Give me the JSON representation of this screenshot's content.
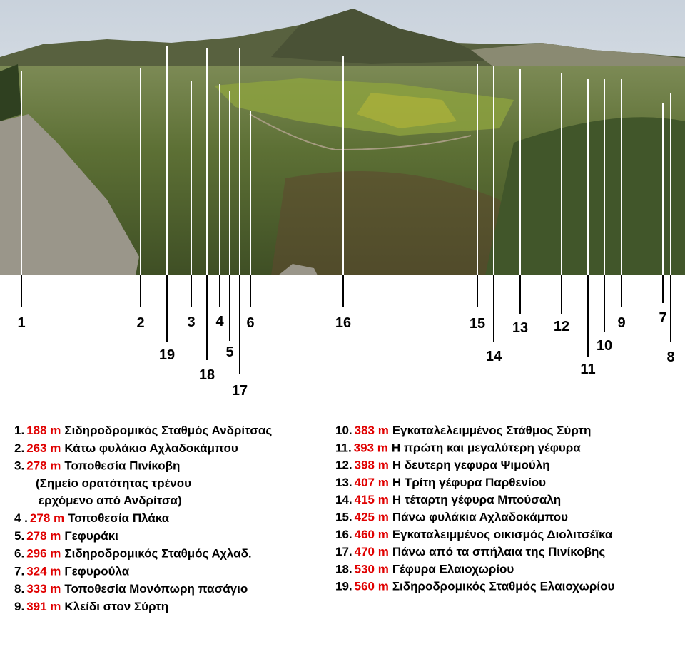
{
  "markers": [
    {
      "label": "1"
    },
    {
      "label": "2"
    },
    {
      "label": "19"
    },
    {
      "label": "3"
    },
    {
      "label": "18"
    },
    {
      "label": "4"
    },
    {
      "label": "5"
    },
    {
      "label": "17"
    },
    {
      "label": "6"
    },
    {
      "label": "16"
    },
    {
      "label": "15"
    },
    {
      "label": "14"
    },
    {
      "label": "13"
    },
    {
      "label": "12"
    },
    {
      "label": "11"
    },
    {
      "label": "10"
    },
    {
      "label": "9"
    },
    {
      "label": "7"
    },
    {
      "label": "8"
    }
  ],
  "legend": [
    {
      "number": "1.",
      "elevation": "188 m",
      "name": "Σιδηροδρομικός Σταθμός Ανδρίτσας"
    },
    {
      "number": "2.",
      "elevation": "263 m",
      "name": "Κάτω  φυλάκιο  Αχλαδοκάμπου"
    },
    {
      "number": "3.",
      "elevation": "278 m",
      "name": "Τοποθεσία Πινίκοβη",
      "notes": [
        "(Σημείο ορατότητας τρένου",
        "ερχόμενο από Ανδρίτσα)"
      ]
    },
    {
      "number": "4 .",
      "elevation": "278 m",
      "name": "Τοποθεσία Πλάκα"
    },
    {
      "number": "5.",
      "elevation": "278 m",
      "name": "Γεφυράκι"
    },
    {
      "number": "6.",
      "elevation": "296 m",
      "name": "Σιδηροδρομικός Σταθμός  Αχλαδ."
    },
    {
      "number": "7.",
      "elevation": "324 m",
      "name": "Γεφυρούλα"
    },
    {
      "number": "8.",
      "elevation": "333 m",
      "name": "Τοποθεσία Μονόπωρη πασάγιο"
    },
    {
      "number": "9.",
      "elevation": "391 m",
      "name": "Κλείδι στον Σύρτη"
    },
    {
      "number": "10.",
      "elevation": "383 m",
      "name": "Εγκαταλελειμμένος Στάθμος Σύρτη"
    },
    {
      "number": "11.",
      "elevation": "393 m",
      "name": "Η πρώτη και μεγαλύτερη γέφυρα"
    },
    {
      "number": "12.",
      "elevation": "398 m",
      "name": "Η δευτερη γεφυρα Ψιμούλη"
    },
    {
      "number": "13.",
      "elevation": "407 m",
      "name": "Η Τρίτη γέφυρα Παρθενίου"
    },
    {
      "number": "14.",
      "elevation": "415 m",
      "name": "Η τέταρτη γέφυρα Μπούσαλη"
    },
    {
      "number": "15.",
      "elevation": "425 m",
      "name": "Πάνω φυλάκια Αχλαδοκάμπου"
    },
    {
      "number": "16.",
      "elevation": "460 m",
      "name": "Εγκαταλειμμένος οικισμός Διολιτσέϊκα"
    },
    {
      "number": "17.",
      "elevation": "470 m",
      "name": "Πάνω από τα σπήλαια της Πινίκοβης"
    },
    {
      "number": "18.",
      "elevation": "530 m",
      "name": "Γέφυρα Ελαιοχωρίου"
    },
    {
      "number": "19.",
      "elevation": "560 m",
      "name": "Σιδηροδρομικός Σταθμός  Ελαιοχωρίου"
    }
  ]
}
